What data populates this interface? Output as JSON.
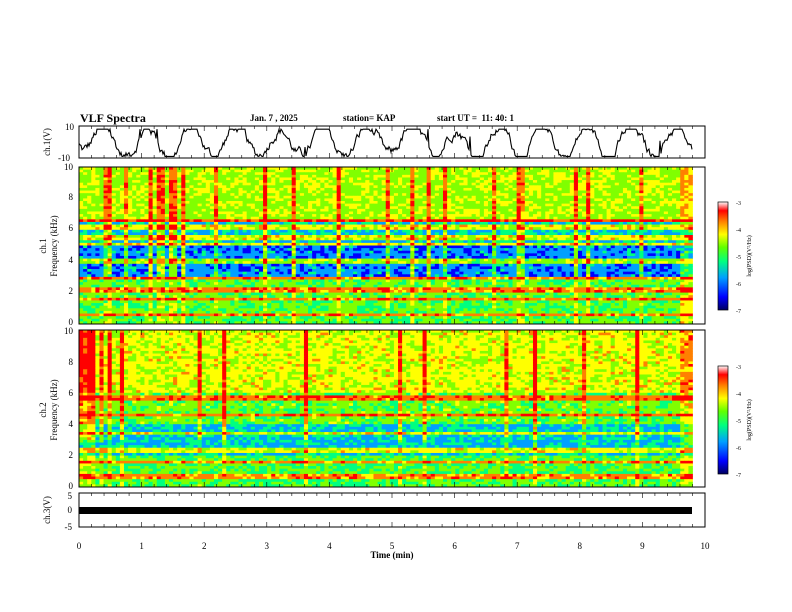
{
  "header": {
    "title": "VLF Spectra",
    "date": "Jan. 7 , 2025",
    "station": "station= KAP",
    "start": "start UT =  11: 40: 1"
  },
  "chart_data": [
    {
      "type": "line",
      "name": "ch1-waveform",
      "ylabel": "ch.1(V)",
      "ylim": [
        -10,
        10
      ],
      "yticks": [
        "10",
        "-10"
      ],
      "xlim": [
        0,
        10
      ]
    },
    {
      "type": "heatmap",
      "name": "ch1-spectrogram",
      "ylabel_line1": "ch.1",
      "ylabel_line2": "Frequency (kHz)",
      "ylim": [
        0,
        10
      ],
      "yticks": [
        "0",
        "2",
        "4",
        "6",
        "8",
        "10"
      ],
      "xlim": [
        0,
        10
      ],
      "data_end_min": 9.8,
      "colorbar": {
        "label": "log(PSD)(V²/Hz)",
        "range": [
          -7,
          -3
        ],
        "ticks": [
          "-3",
          "-4",
          "-5",
          "-6",
          "-7"
        ]
      }
    },
    {
      "type": "heatmap",
      "name": "ch2-spectrogram",
      "ylabel_line1": "ch.2",
      "ylabel_line2": "Frequency (kHz)",
      "ylim": [
        0,
        10
      ],
      "yticks": [
        "0",
        "2",
        "4",
        "6",
        "8",
        "10"
      ],
      "xlim": [
        0,
        10
      ],
      "data_end_min": 9.8,
      "colorbar": {
        "label": "log(PSD)(V²/Hz)",
        "range": [
          -7,
          -3
        ],
        "ticks": [
          "-3",
          "-4",
          "-5",
          "-6",
          "-7"
        ]
      }
    },
    {
      "type": "line",
      "name": "ch3-waveform",
      "ylabel": "ch.3(V)",
      "ylim": [
        -5,
        5
      ],
      "yticks": [
        "5",
        "0",
        "-5"
      ],
      "xlim": [
        0,
        10
      ],
      "xlabel": "Time (min)",
      "xticks": [
        "0",
        "1",
        "2",
        "3",
        "4",
        "5",
        "6",
        "7",
        "8",
        "9",
        "10"
      ]
    }
  ],
  "colors": {
    "scale": [
      "#000080",
      "#0000ff",
      "#00a0ff",
      "#00ff80",
      "#80ff00",
      "#ffff00",
      "#ff8000",
      "#ff0000",
      "#ffffff"
    ],
    "trace": "#000000"
  }
}
